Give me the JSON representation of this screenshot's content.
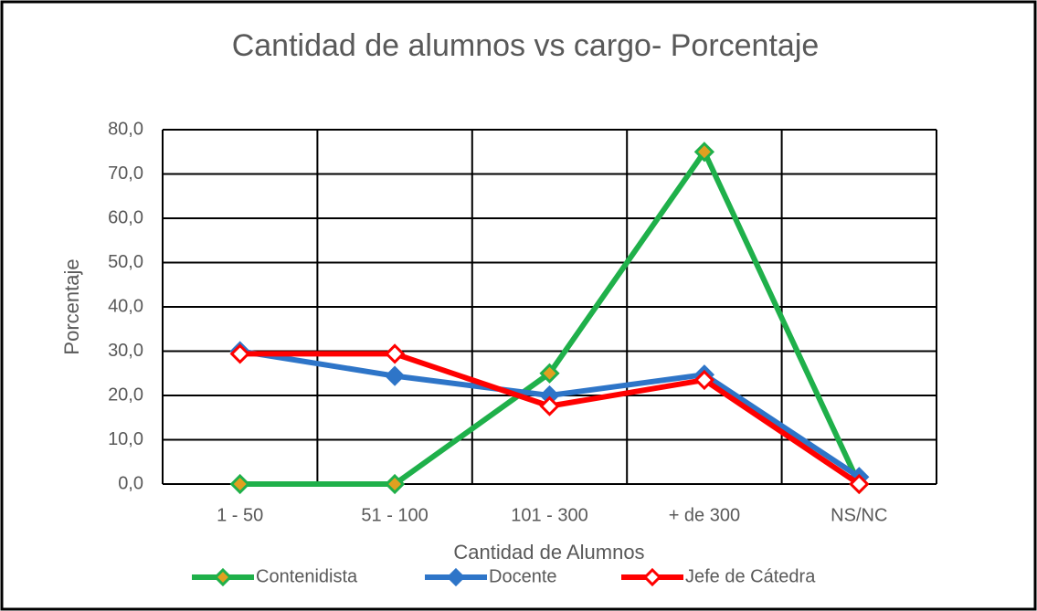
{
  "chart_data": {
    "type": "line",
    "title": "Cantidad de alumnos vs cargo- Porcentaje",
    "x_label": "Cantidad de Alumnos",
    "y_label": "Porcentaje",
    "categories": [
      "1 - 50",
      "51 - 100",
      "101 - 300",
      "+ de 300",
      "NS/NC"
    ],
    "series": [
      {
        "name": "Contenidista",
        "color": "#1fb04a",
        "values": [
          0,
          0,
          25,
          75,
          0
        ]
      },
      {
        "name": "Docente",
        "color": "#2e75c8",
        "values": [
          30,
          24.4,
          20,
          24.7,
          1.6
        ]
      },
      {
        "name": "Jefe de Cátedra",
        "color": "#ff0000",
        "values": [
          29.4,
          29.4,
          17.6,
          23.5,
          0
        ]
      }
    ],
    "ylim": [
      0,
      80
    ],
    "yticks": [
      {
        "value": 0,
        "label": "0,0"
      },
      {
        "value": 10,
        "label": "10,0"
      },
      {
        "value": 20,
        "label": "20,0"
      },
      {
        "value": 30,
        "label": "30,0"
      },
      {
        "value": 40,
        "label": "40,0"
      },
      {
        "value": 50,
        "label": "50,0"
      },
      {
        "value": 60,
        "label": "60,0"
      },
      {
        "value": 70,
        "label": "70,0"
      },
      {
        "value": 80,
        "label": "80,0"
      }
    ],
    "grid": true,
    "legend": "bottom"
  }
}
